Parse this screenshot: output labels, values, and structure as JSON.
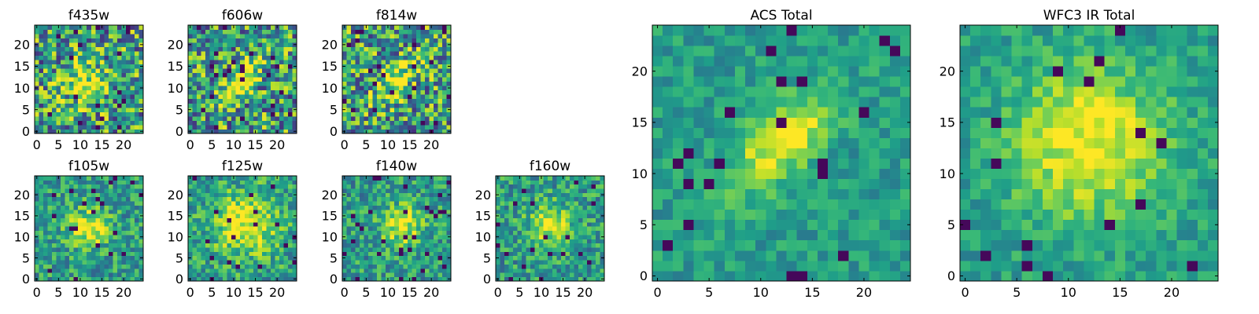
{
  "chart_data": [
    {
      "type": "heatmap",
      "title": "f435w",
      "colormap": "viridis",
      "xlim": [
        -0.5,
        24.5
      ],
      "ylim": [
        -0.5,
        24.5
      ],
      "xticks": [
        0,
        5,
        10,
        15,
        20
      ],
      "yticks": [
        0,
        5,
        10,
        15,
        20
      ],
      "source_center": [
        11,
        11
      ],
      "source_shape": "compact",
      "noise": "high",
      "seed": 11
    },
    {
      "type": "heatmap",
      "title": "f606w",
      "colormap": "viridis",
      "xlim": [
        -0.5,
        24.5
      ],
      "ylim": [
        -0.5,
        24.5
      ],
      "xticks": [
        0,
        5,
        10,
        15,
        20
      ],
      "yticks": [
        0,
        5,
        10,
        15,
        20
      ],
      "source_center": [
        11,
        11
      ],
      "source_shape": "elongated",
      "noise": "high",
      "seed": 23
    },
    {
      "type": "heatmap",
      "title": "f814w",
      "colormap": "viridis",
      "xlim": [
        -0.5,
        24.5
      ],
      "ylim": [
        -0.5,
        24.5
      ],
      "xticks": [
        0,
        5,
        10,
        15,
        20
      ],
      "yticks": [
        0,
        5,
        10,
        15,
        20
      ],
      "source_center": [
        12,
        12
      ],
      "source_shape": "elongated",
      "noise": "high",
      "seed": 37
    },
    {
      "type": "heatmap",
      "title": "f105w",
      "colormap": "viridis",
      "xlim": [
        -0.5,
        24.5
      ],
      "ylim": [
        -0.5,
        24.5
      ],
      "xticks": [
        0,
        5,
        10,
        15,
        20
      ],
      "yticks": [
        0,
        5,
        10,
        15,
        20
      ],
      "source_center": [
        12,
        12
      ],
      "source_shape": "compact",
      "noise": "medium",
      "seed": 41
    },
    {
      "type": "heatmap",
      "title": "f125w",
      "colormap": "viridis",
      "xlim": [
        -0.5,
        24.5
      ],
      "ylim": [
        -0.5,
        24.5
      ],
      "xticks": [
        0,
        5,
        10,
        15,
        20
      ],
      "yticks": [
        0,
        5,
        10,
        15,
        20
      ],
      "source_center": [
        13,
        13
      ],
      "source_shape": "diffuse",
      "noise": "medium",
      "seed": 53
    },
    {
      "type": "heatmap",
      "title": "f140w",
      "colormap": "viridis",
      "xlim": [
        -0.5,
        24.5
      ],
      "ylim": [
        -0.5,
        24.5
      ],
      "xticks": [
        0,
        5,
        10,
        15,
        20
      ],
      "yticks": [
        0,
        5,
        10,
        15,
        20
      ],
      "source_center": [
        13,
        13
      ],
      "source_shape": "compact",
      "noise": "medium",
      "seed": 67
    },
    {
      "type": "heatmap",
      "title": "f160w",
      "colormap": "viridis",
      "xlim": [
        -0.5,
        24.5
      ],
      "ylim": [
        -0.5,
        24.5
      ],
      "xticks": [
        0,
        5,
        10,
        15,
        20
      ],
      "yticks": [
        0,
        5,
        10,
        15,
        20
      ],
      "source_center": [
        12,
        13
      ],
      "source_shape": "compact",
      "noise": "medium",
      "seed": 79
    },
    {
      "type": "heatmap",
      "title": "ACS Total",
      "colormap": "viridis",
      "xlim": [
        -0.5,
        24.5
      ],
      "ylim": [
        -0.5,
        24.5
      ],
      "xticks": [
        0,
        5,
        10,
        15,
        20
      ],
      "yticks": [
        0,
        5,
        10,
        15,
        20
      ],
      "source_center": [
        12,
        13
      ],
      "source_shape": "elongated",
      "noise": "low",
      "seed": 97
    },
    {
      "type": "heatmap",
      "title": "WFC3 IR Total",
      "colormap": "viridis",
      "xlim": [
        -0.5,
        24.5
      ],
      "ylim": [
        -0.5,
        24.5
      ],
      "xticks": [
        0,
        5,
        10,
        15,
        20
      ],
      "yticks": [
        0,
        5,
        10,
        15,
        20
      ],
      "source_center": [
        12,
        13
      ],
      "source_shape": "diffuse",
      "noise": "low",
      "seed": 113
    }
  ]
}
